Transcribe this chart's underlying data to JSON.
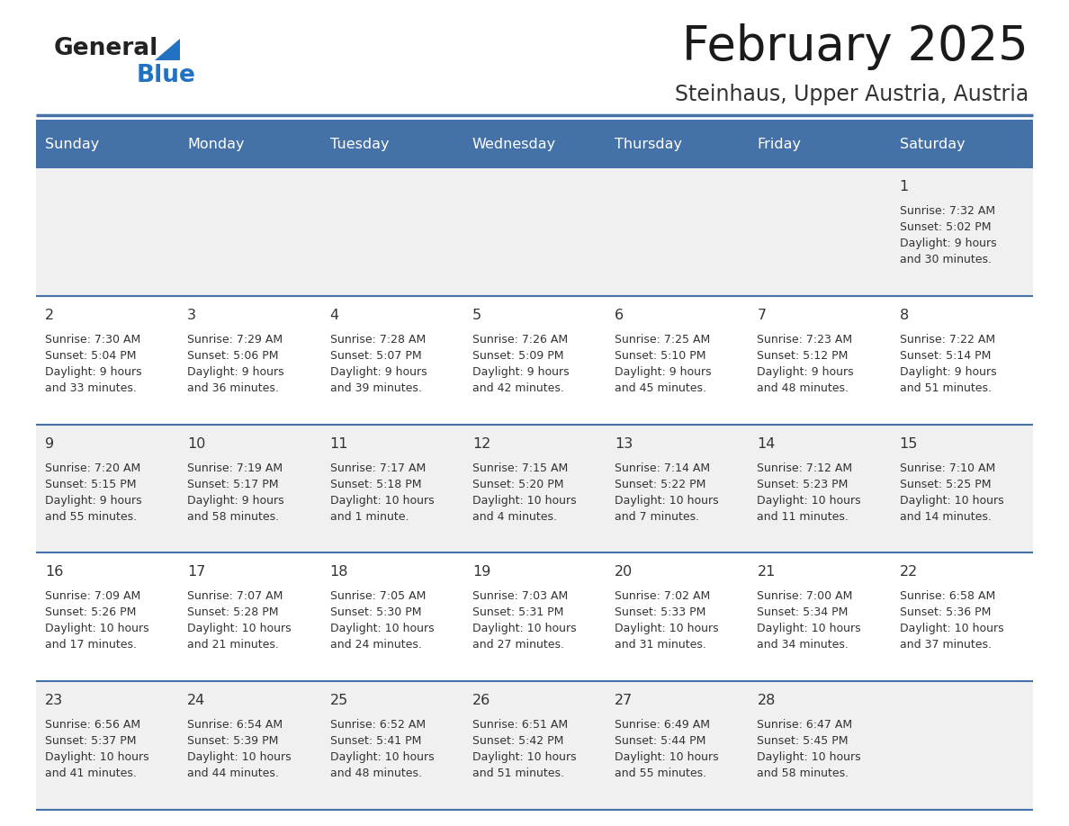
{
  "title": "February 2025",
  "subtitle": "Steinhaus, Upper Austria, Austria",
  "header_color": "#4472a8",
  "header_text_color": "#ffffff",
  "bg_color": "#ffffff",
  "row_alt_color": "#f0f0f0",
  "border_color": "#4472a8",
  "text_color": "#333333",
  "days_of_week": [
    "Sunday",
    "Monday",
    "Tuesday",
    "Wednesday",
    "Thursday",
    "Friday",
    "Saturday"
  ],
  "calendar": [
    [
      null,
      null,
      null,
      null,
      null,
      null,
      {
        "day": "1",
        "sunrise": "7:32 AM",
        "sunset": "5:02 PM",
        "daylight_l1": "9 hours",
        "daylight_l2": "and 30 minutes."
      }
    ],
    [
      {
        "day": "2",
        "sunrise": "7:30 AM",
        "sunset": "5:04 PM",
        "daylight_l1": "9 hours",
        "daylight_l2": "and 33 minutes."
      },
      {
        "day": "3",
        "sunrise": "7:29 AM",
        "sunset": "5:06 PM",
        "daylight_l1": "9 hours",
        "daylight_l2": "and 36 minutes."
      },
      {
        "day": "4",
        "sunrise": "7:28 AM",
        "sunset": "5:07 PM",
        "daylight_l1": "9 hours",
        "daylight_l2": "and 39 minutes."
      },
      {
        "day": "5",
        "sunrise": "7:26 AM",
        "sunset": "5:09 PM",
        "daylight_l1": "9 hours",
        "daylight_l2": "and 42 minutes."
      },
      {
        "day": "6",
        "sunrise": "7:25 AM",
        "sunset": "5:10 PM",
        "daylight_l1": "9 hours",
        "daylight_l2": "and 45 minutes."
      },
      {
        "day": "7",
        "sunrise": "7:23 AM",
        "sunset": "5:12 PM",
        "daylight_l1": "9 hours",
        "daylight_l2": "and 48 minutes."
      },
      {
        "day": "8",
        "sunrise": "7:22 AM",
        "sunset": "5:14 PM",
        "daylight_l1": "9 hours",
        "daylight_l2": "and 51 minutes."
      }
    ],
    [
      {
        "day": "9",
        "sunrise": "7:20 AM",
        "sunset": "5:15 PM",
        "daylight_l1": "9 hours",
        "daylight_l2": "and 55 minutes."
      },
      {
        "day": "10",
        "sunrise": "7:19 AM",
        "sunset": "5:17 PM",
        "daylight_l1": "9 hours",
        "daylight_l2": "and 58 minutes."
      },
      {
        "day": "11",
        "sunrise": "7:17 AM",
        "sunset": "5:18 PM",
        "daylight_l1": "10 hours",
        "daylight_l2": "and 1 minute."
      },
      {
        "day": "12",
        "sunrise": "7:15 AM",
        "sunset": "5:20 PM",
        "daylight_l1": "10 hours",
        "daylight_l2": "and 4 minutes."
      },
      {
        "day": "13",
        "sunrise": "7:14 AM",
        "sunset": "5:22 PM",
        "daylight_l1": "10 hours",
        "daylight_l2": "and 7 minutes."
      },
      {
        "day": "14",
        "sunrise": "7:12 AM",
        "sunset": "5:23 PM",
        "daylight_l1": "10 hours",
        "daylight_l2": "and 11 minutes."
      },
      {
        "day": "15",
        "sunrise": "7:10 AM",
        "sunset": "5:25 PM",
        "daylight_l1": "10 hours",
        "daylight_l2": "and 14 minutes."
      }
    ],
    [
      {
        "day": "16",
        "sunrise": "7:09 AM",
        "sunset": "5:26 PM",
        "daylight_l1": "10 hours",
        "daylight_l2": "and 17 minutes."
      },
      {
        "day": "17",
        "sunrise": "7:07 AM",
        "sunset": "5:28 PM",
        "daylight_l1": "10 hours",
        "daylight_l2": "and 21 minutes."
      },
      {
        "day": "18",
        "sunrise": "7:05 AM",
        "sunset": "5:30 PM",
        "daylight_l1": "10 hours",
        "daylight_l2": "and 24 minutes."
      },
      {
        "day": "19",
        "sunrise": "7:03 AM",
        "sunset": "5:31 PM",
        "daylight_l1": "10 hours",
        "daylight_l2": "and 27 minutes."
      },
      {
        "day": "20",
        "sunrise": "7:02 AM",
        "sunset": "5:33 PM",
        "daylight_l1": "10 hours",
        "daylight_l2": "and 31 minutes."
      },
      {
        "day": "21",
        "sunrise": "7:00 AM",
        "sunset": "5:34 PM",
        "daylight_l1": "10 hours",
        "daylight_l2": "and 34 minutes."
      },
      {
        "day": "22",
        "sunrise": "6:58 AM",
        "sunset": "5:36 PM",
        "daylight_l1": "10 hours",
        "daylight_l2": "and 37 minutes."
      }
    ],
    [
      {
        "day": "23",
        "sunrise": "6:56 AM",
        "sunset": "5:37 PM",
        "daylight_l1": "10 hours",
        "daylight_l2": "and 41 minutes."
      },
      {
        "day": "24",
        "sunrise": "6:54 AM",
        "sunset": "5:39 PM",
        "daylight_l1": "10 hours",
        "daylight_l2": "and 44 minutes."
      },
      {
        "day": "25",
        "sunrise": "6:52 AM",
        "sunset": "5:41 PM",
        "daylight_l1": "10 hours",
        "daylight_l2": "and 48 minutes."
      },
      {
        "day": "26",
        "sunrise": "6:51 AM",
        "sunset": "5:42 PM",
        "daylight_l1": "10 hours",
        "daylight_l2": "and 51 minutes."
      },
      {
        "day": "27",
        "sunrise": "6:49 AM",
        "sunset": "5:44 PM",
        "daylight_l1": "10 hours",
        "daylight_l2": "and 55 minutes."
      },
      {
        "day": "28",
        "sunrise": "6:47 AM",
        "sunset": "5:45 PM",
        "daylight_l1": "10 hours",
        "daylight_l2": "and 58 minutes."
      },
      null
    ]
  ],
  "logo_general_color": "#222222",
  "logo_blue_color": "#2272c3",
  "logo_triangle_color": "#2272c3"
}
